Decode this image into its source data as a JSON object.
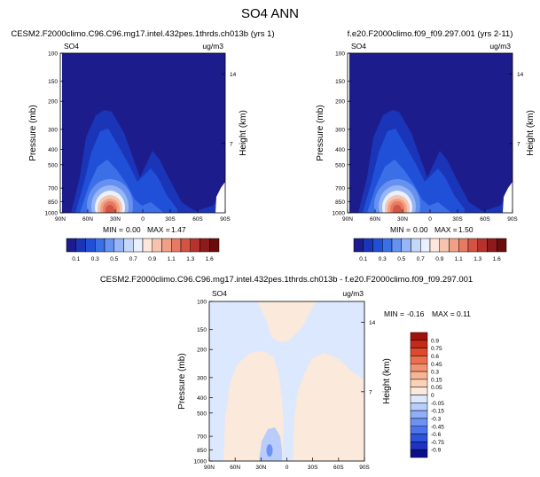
{
  "figure": {
    "title": "SO4 ANN"
  },
  "colors": {
    "abs_scale": [
      "#1c1c8c",
      "#1a35b8",
      "#2150d8",
      "#3b6fe8",
      "#6691f0",
      "#97b6f6",
      "#c3d7fa",
      "#e9f0fe",
      "#fde6da",
      "#f7c3ae",
      "#f0a085",
      "#e77a62",
      "#d55343",
      "#b7322c",
      "#8e1b1b",
      "#6a0c0c"
    ],
    "diff_scale": [
      "#0b0e8a",
      "#1f32c2",
      "#2d52de",
      "#4a73ec",
      "#6b92f4",
      "#8fb0f8",
      "#b8cdfb",
      "#dce8fd",
      "#fbe9db",
      "#fbd2b8",
      "#f8b596",
      "#f39271",
      "#ec6e4d",
      "#de4a2d",
      "#c52a17",
      "#a3100a"
    ]
  },
  "chart_data": [
    {
      "type": "heatmap",
      "title": "CESM2.F2000climo.C96.C96.mg17.intel.432pes.1thrds.ch013b (yrs 1)",
      "left_label": "SO4",
      "right_label": "ug/m3",
      "ylabel": "Pressure (mb)",
      "y2label": "Height (km)",
      "x_ticks": [
        "90N",
        "60N",
        "30N",
        "0",
        "30S",
        "60S",
        "90S"
      ],
      "y_ticks": [
        "100",
        "150",
        "200",
        "300",
        "400",
        "500",
        "700",
        "850",
        "1000"
      ],
      "y2_ticks": [
        "14",
        "7"
      ],
      "min_label": "MIN =",
      "min": "0.00",
      "max_label": "MAX =",
      "max": "1.47",
      "colorbar_ticks": [
        "0.1",
        "0.3",
        "0.5",
        "0.7",
        "0.9",
        "1.1",
        "1.3",
        "1.6"
      ]
    },
    {
      "type": "heatmap",
      "title": "f.e20.F2000climo.f09_f09.297.001 (yrs 2-11)",
      "left_label": "SO4",
      "right_label": "ug/m3",
      "ylabel": "Pressure (mb)",
      "y2label": "Height (km)",
      "x_ticks": [
        "90N",
        "60N",
        "30N",
        "0",
        "30S",
        "60S",
        "90S"
      ],
      "y_ticks": [
        "100",
        "150",
        "200",
        "300",
        "400",
        "500",
        "700",
        "850",
        "1000"
      ],
      "y2_ticks": [
        "14",
        "7"
      ],
      "min_label": "MIN =",
      "min": "0.00",
      "max_label": "MAX =",
      "max": "1.50",
      "colorbar_ticks": [
        "0.1",
        "0.3",
        "0.5",
        "0.7",
        "0.9",
        "1.1",
        "1.3",
        "1.6"
      ]
    },
    {
      "type": "heatmap",
      "title": "CESM2.F2000climo.C96.C96.mg17.intel.432pes.1thrds.ch013b - f.e20.F2000climo.f09_f09.297.001",
      "left_label": "SO4",
      "right_label": "ug/m3",
      "ylabel": "Pressure (mb)",
      "y2label": "Height (km)",
      "x_ticks": [
        "90N",
        "60N",
        "30N",
        "0",
        "30S",
        "60S",
        "90S"
      ],
      "y_ticks": [
        "100",
        "150",
        "200",
        "300",
        "400",
        "500",
        "700",
        "850",
        "1000"
      ],
      "y2_ticks": [
        "14",
        "7"
      ],
      "min_label": "MIN =",
      "min": "-0.16",
      "max_label": "MAX =",
      "max": "0.11",
      "colorbar_ticks": [
        "0.9",
        "0.75",
        "0.6",
        "0.45",
        "0.3",
        "0.15",
        "0.05",
        "0",
        "-0.05",
        "-0.15",
        "-0.3",
        "-0.45",
        "-0.6",
        "-0.75",
        "-0.9"
      ]
    }
  ]
}
